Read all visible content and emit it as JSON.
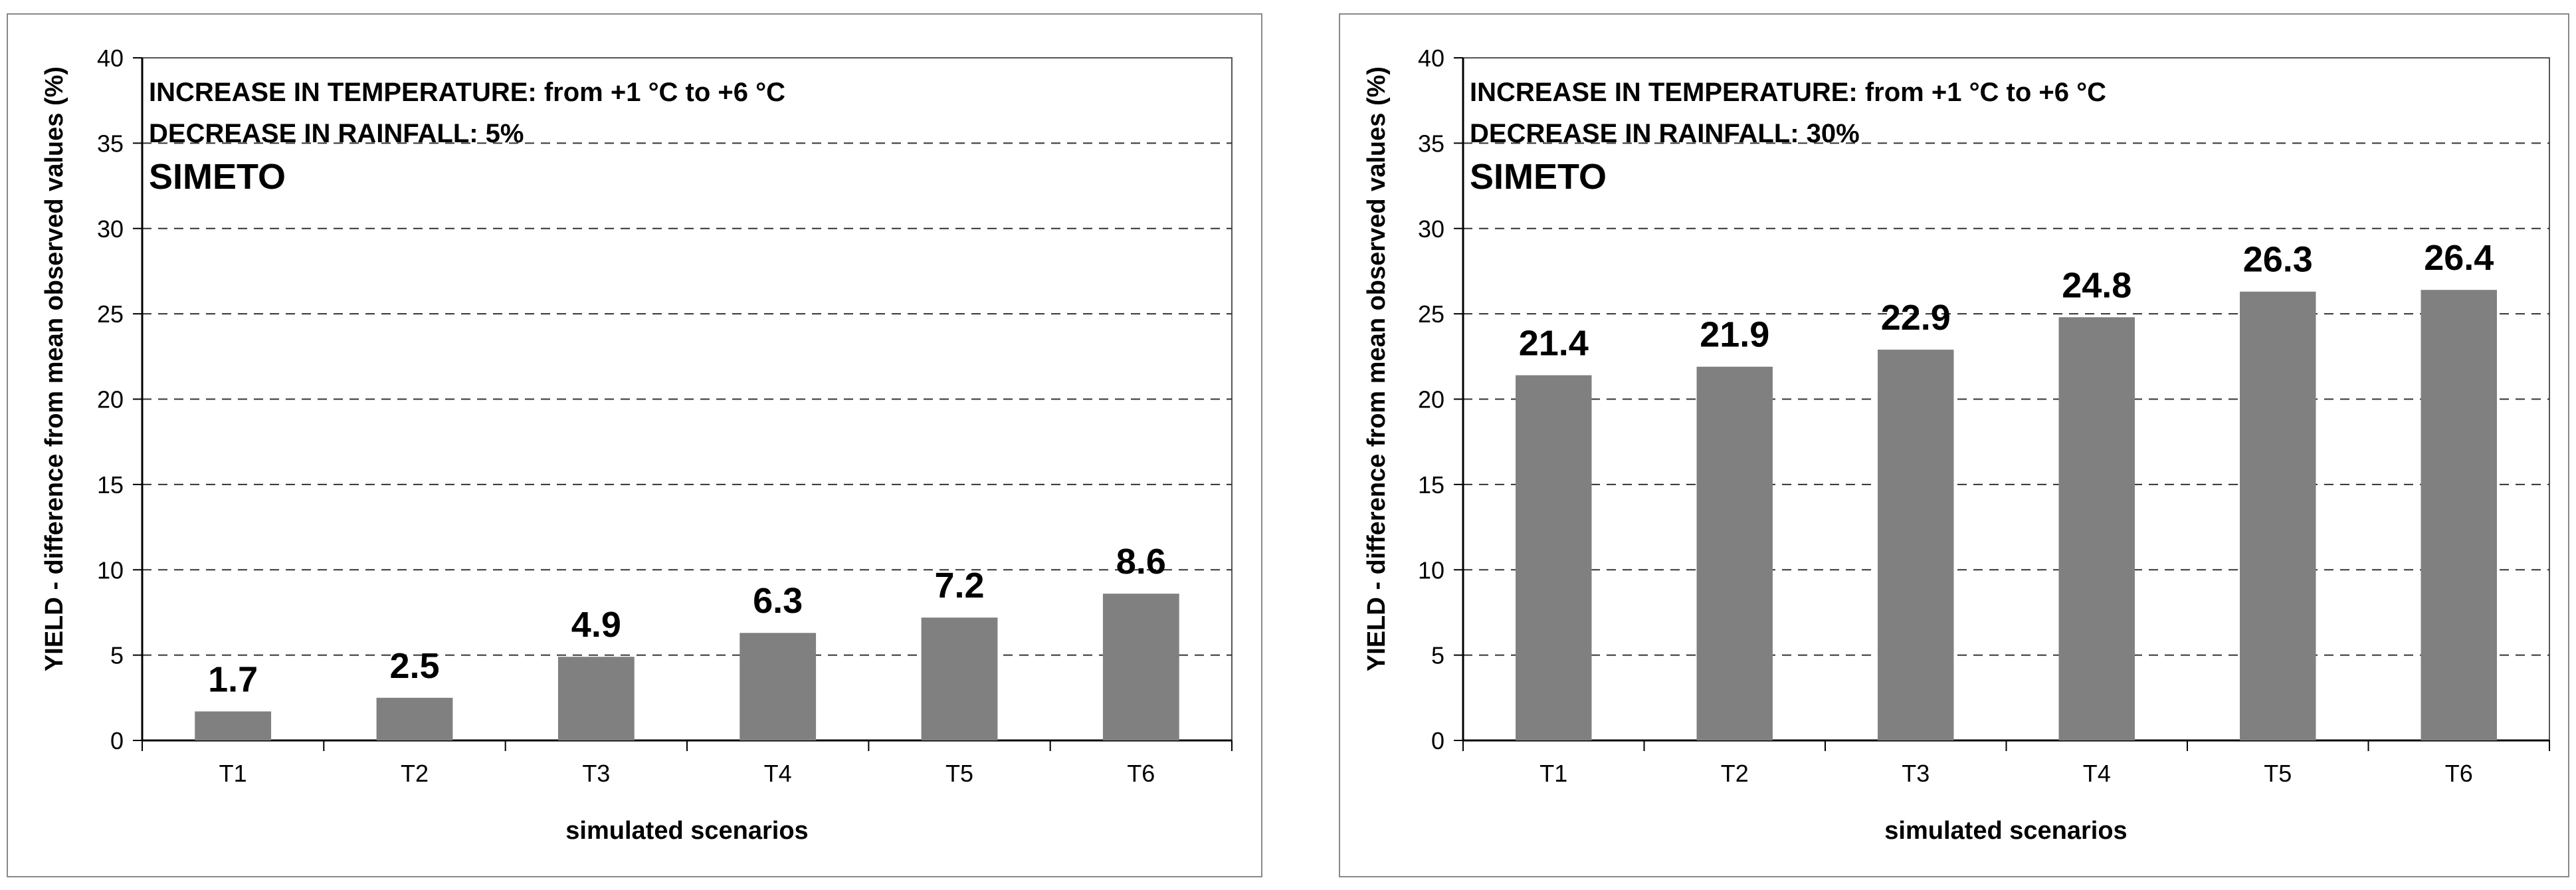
{
  "chart_data": [
    {
      "type": "bar",
      "annotation_line1": "INCREASE IN TEMPERATURE: from +1 °C to +6 °C",
      "annotation_line2": "DECREASE IN RAINFALL: 5%",
      "title": "SIMETO",
      "xlabel": "simulated scenarios",
      "ylabel": "YIELD - difference from mean observed values (%)",
      "ylim": [
        0,
        40
      ],
      "yticks": [
        "0",
        "5",
        "10",
        "15",
        "20",
        "25",
        "30",
        "35",
        "40"
      ],
      "grid": "dashed-horizontal",
      "categories": [
        "T1",
        "T2",
        "T3",
        "T4",
        "T5",
        "T6"
      ],
      "values": [
        1.7,
        2.5,
        4.9,
        6.3,
        7.2,
        8.6
      ],
      "value_labels": [
        "1.7",
        "2.5",
        "4.9",
        "6.3",
        "7.2",
        "8.6"
      ],
      "bar_color": "#808080"
    },
    {
      "type": "bar",
      "annotation_line1": "INCREASE IN TEMPERATURE: from +1 °C to +6 °C",
      "annotation_line2": "DECREASE IN RAINFALL: 30%",
      "title": "SIMETO",
      "xlabel": "simulated scenarios",
      "ylabel": "YIELD - difference from mean observed values (%)",
      "ylim": [
        0,
        40
      ],
      "yticks": [
        "0",
        "5",
        "10",
        "15",
        "20",
        "25",
        "30",
        "35",
        "40"
      ],
      "grid": "dashed-horizontal",
      "categories": [
        "T1",
        "T2",
        "T3",
        "T4",
        "T5",
        "T6"
      ],
      "values": [
        21.4,
        21.9,
        22.9,
        24.8,
        26.3,
        26.4
      ],
      "value_labels": [
        "21.4",
        "21.9",
        "22.9",
        "24.8",
        "26.3",
        "26.4"
      ],
      "bar_color": "#808080"
    }
  ]
}
